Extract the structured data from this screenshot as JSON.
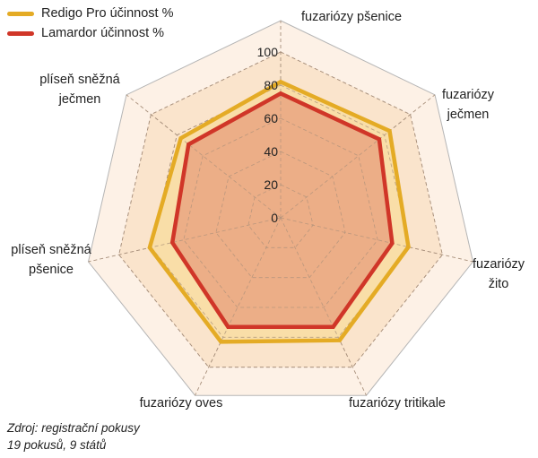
{
  "chart_data": {
    "type": "radar",
    "title": "",
    "categories": [
      "fuzariózy pšenice",
      "fuzariózy ječmen",
      "fuzariózy žito",
      "fuzariózy tritikale",
      "fuzariózy oves",
      "plíseň sněžná pšenice",
      "plíseň sněžná ječmen"
    ],
    "category_label_lines": [
      [
        "fuzariózy pšenice"
      ],
      [
        "fuzariózy",
        "ječmen"
      ],
      [
        "fuzariózy",
        "žito"
      ],
      [
        "fuzariózy tritikale"
      ],
      [
        "fuzariózy oves"
      ],
      [
        "plíseň sněžná",
        "pšenice"
      ],
      [
        "plíseň sněžná",
        "ječmen"
      ]
    ],
    "rlim": [
      0,
      100
    ],
    "ticks": [
      "0",
      "20",
      "40",
      "60",
      "80",
      "100"
    ],
    "tick_values": [
      0,
      20,
      40,
      60,
      80,
      100
    ],
    "grid": true,
    "series": [
      {
        "name": "Redigo Pro účinnost %",
        "color": "#e4ab25",
        "fill": "#f8dc9d",
        "values": [
          82,
          84,
          79,
          82,
          83,
          81,
          77
        ]
      },
      {
        "name": "Lamardor účinnost %",
        "color": "#d03628",
        "fill": "#e8a07e",
        "values": [
          75,
          76,
          69,
          73,
          73,
          67,
          71
        ]
      }
    ],
    "legend_position": "top-left"
  },
  "colors": {
    "background_outer": "#fdf1e6",
    "background_inner": "#fae4cc",
    "grid_line": "#a8907c",
    "outline": "#b5b5b5"
  },
  "source": {
    "line1": "Zdroj: registrační pokusy",
    "line2": "19 pokusů, 9 států"
  }
}
